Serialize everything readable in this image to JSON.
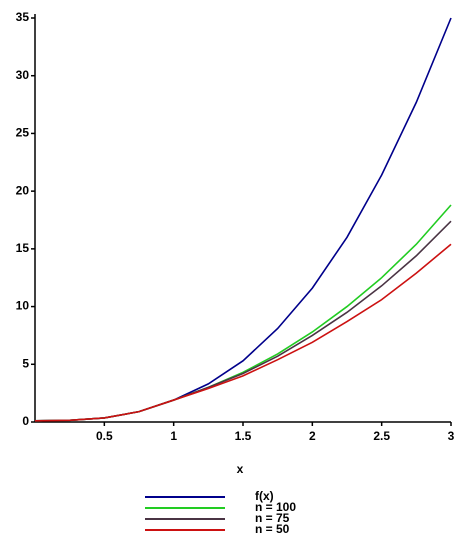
{
  "chart_data": {
    "type": "line",
    "x": [
      0,
      0.25,
      0.5,
      0.75,
      1,
      1.25,
      1.5,
      1.75,
      2,
      2.25,
      2.5,
      2.75,
      3
    ],
    "series": [
      {
        "name": "f(x)",
        "color": "#00008b",
        "values": [
          0.1,
          0.15,
          0.35,
          0.9,
          1.9,
          3.3,
          5.3,
          8.1,
          11.6,
          16,
          21.4,
          27.7,
          35
        ]
      },
      {
        "name": "n = 100",
        "color": "#22cc22",
        "values": [
          0.1,
          0.15,
          0.35,
          0.9,
          1.9,
          3.0,
          4.3,
          5.9,
          7.8,
          10,
          12.5,
          15.4,
          18.8
        ]
      },
      {
        "name": "n = 75",
        "color": "#4a3444",
        "values": [
          0.1,
          0.15,
          0.35,
          0.9,
          1.9,
          3.0,
          4.2,
          5.7,
          7.5,
          9.5,
          11.8,
          14.4,
          17.4
        ]
      },
      {
        "name": "n = 50",
        "color": "#cc1111",
        "values": [
          0.1,
          0.15,
          0.35,
          0.9,
          1.9,
          2.9,
          4.0,
          5.4,
          6.9,
          8.7,
          10.6,
          12.9,
          15.4
        ]
      }
    ],
    "x_label": "x",
    "xlim": [
      0,
      3
    ],
    "xticks": [
      0.5,
      1,
      1.5,
      2,
      2.5,
      3
    ],
    "ylim": [
      0,
      35
    ],
    "yticks": [
      0,
      5,
      10,
      15,
      20,
      25,
      30,
      35
    ],
    "legend": "bottom"
  }
}
